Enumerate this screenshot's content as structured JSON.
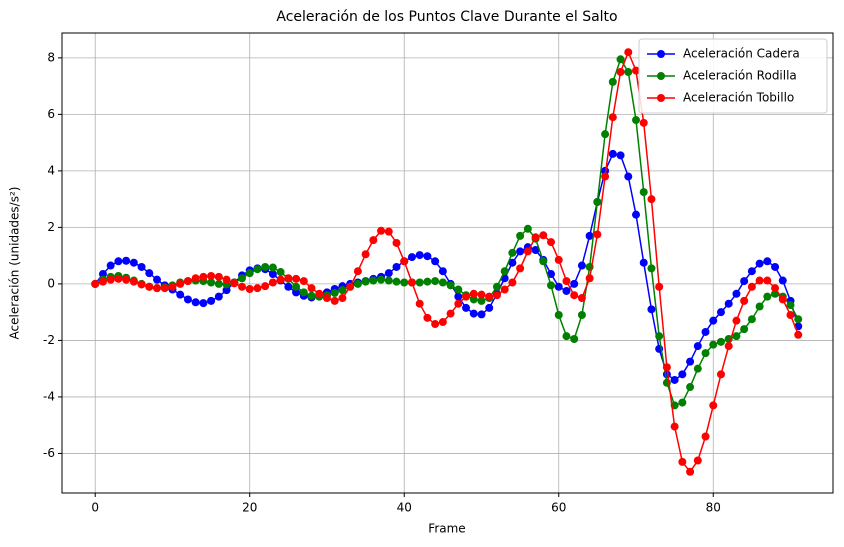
{
  "chart_data": {
    "type": "line",
    "title": "Aceleración de los Puntos Clave Durante el Salto",
    "x_label": "Frame",
    "y_label": "Aceleración (unidades/s²)",
    "x": [
      0,
      1,
      2,
      3,
      4,
      5,
      6,
      7,
      8,
      9,
      10,
      11,
      12,
      13,
      14,
      15,
      16,
      17,
      18,
      19,
      20,
      21,
      22,
      23,
      24,
      25,
      26,
      27,
      28,
      29,
      30,
      31,
      32,
      33,
      34,
      35,
      36,
      37,
      38,
      39,
      40,
      41,
      42,
      43,
      44,
      45,
      46,
      47,
      48,
      49,
      50,
      51,
      52,
      53,
      54,
      55,
      56,
      57,
      58,
      59,
      60,
      61,
      62,
      63,
      64,
      65,
      66,
      67,
      68,
      69,
      70,
      71,
      72,
      73,
      74,
      75,
      76,
      77,
      78,
      79,
      80,
      81,
      82,
      83,
      84,
      85,
      86,
      87,
      88,
      89,
      90,
      91
    ],
    "series": [
      {
        "name": "Aceleración Cadera",
        "color": "#0000ff",
        "values": [
          0,
          0.35,
          0.65,
          0.8,
          0.82,
          0.75,
          0.6,
          0.38,
          0.15,
          -0.05,
          -0.2,
          -0.38,
          -0.55,
          -0.65,
          -0.68,
          -0.6,
          -0.45,
          -0.22,
          0.05,
          0.3,
          0.48,
          0.55,
          0.52,
          0.35,
          0.12,
          -0.1,
          -0.3,
          -0.42,
          -0.48,
          -0.42,
          -0.3,
          -0.18,
          -0.08,
          0,
          0.05,
          0.1,
          0.18,
          0.25,
          0.38,
          0.6,
          0.8,
          0.95,
          1.02,
          0.98,
          0.8,
          0.45,
          0,
          -0.45,
          -0.85,
          -1.05,
          -1.08,
          -0.85,
          -0.35,
          0.2,
          0.75,
          1.15,
          1.3,
          1.2,
          0.85,
          0.35,
          -0.1,
          -0.25,
          0,
          0.65,
          1.7,
          2.9,
          4.0,
          4.6,
          4.55,
          3.8,
          2.45,
          0.75,
          -0.9,
          -2.3,
          -3.2,
          -3.4,
          -3.2,
          -2.75,
          -2.2,
          -1.7,
          -1.3,
          -1.0,
          -0.7,
          -0.35,
          0.1,
          0.45,
          0.72,
          0.8,
          0.6,
          0.12,
          -0.6,
          -1.5
        ]
      },
      {
        "name": "Aceleración Rodilla",
        "color": "#008000",
        "values": [
          0,
          0.15,
          0.25,
          0.28,
          0.22,
          0.12,
          0,
          -0.1,
          -0.15,
          -0.12,
          -0.05,
          0.05,
          0.1,
          0.12,
          0.1,
          0.05,
          0,
          -0.02,
          0.05,
          0.2,
          0.38,
          0.52,
          0.6,
          0.58,
          0.42,
          0.18,
          -0.1,
          -0.3,
          -0.42,
          -0.45,
          -0.4,
          -0.32,
          -0.22,
          -0.1,
          0,
          0.08,
          0.12,
          0.15,
          0.12,
          0.08,
          0.05,
          0.05,
          0.05,
          0.08,
          0.1,
          0.05,
          -0.05,
          -0.2,
          -0.4,
          -0.55,
          -0.6,
          -0.5,
          -0.1,
          0.45,
          1.1,
          1.7,
          1.95,
          1.6,
          0.8,
          -0.05,
          -1.1,
          -1.85,
          -1.95,
          -1.1,
          0.6,
          2.9,
          5.3,
          7.15,
          7.95,
          7.5,
          5.8,
          3.25,
          0.55,
          -1.85,
          -3.5,
          -4.3,
          -4.2,
          -3.65,
          -3.0,
          -2.45,
          -2.15,
          -2.05,
          -1.95,
          -1.85,
          -1.6,
          -1.25,
          -0.8,
          -0.45,
          -0.35,
          -0.45,
          -0.75,
          -1.25
        ]
      },
      {
        "name": "Aceleración Tobillo",
        "color": "#ff0000",
        "values": [
          0,
          0.08,
          0.15,
          0.18,
          0.15,
          0.08,
          -0.02,
          -0.1,
          -0.15,
          -0.15,
          -0.1,
          0,
          0.1,
          0.2,
          0.25,
          0.28,
          0.25,
          0.15,
          0.02,
          -0.1,
          -0.18,
          -0.15,
          -0.08,
          0.05,
          0.15,
          0.2,
          0.18,
          0.1,
          -0.15,
          -0.35,
          -0.5,
          -0.6,
          -0.5,
          -0.1,
          0.45,
          1.05,
          1.55,
          1.88,
          1.85,
          1.45,
          0.8,
          0.05,
          -0.7,
          -1.2,
          -1.42,
          -1.35,
          -1.05,
          -0.7,
          -0.45,
          -0.35,
          -0.38,
          -0.45,
          -0.4,
          -0.2,
          0.05,
          0.55,
          1.15,
          1.65,
          1.72,
          1.48,
          0.85,
          0.1,
          -0.4,
          -0.5,
          0.2,
          1.75,
          3.8,
          5.9,
          7.5,
          8.2,
          7.55,
          5.7,
          3.0,
          -0.1,
          -2.95,
          -5.05,
          -6.3,
          -6.65,
          -6.25,
          -5.4,
          -4.3,
          -3.2,
          -2.2,
          -1.3,
          -0.6,
          -0.1,
          0.12,
          0.12,
          -0.15,
          -0.55,
          -1.1,
          -1.8
        ]
      }
    ],
    "xlim": [
      -4.3,
      95.5
    ],
    "xticks": [
      0,
      20,
      40,
      60,
      80
    ],
    "ylim": [
      -7.4,
      8.88
    ],
    "yticks": [
      -6,
      -4,
      -2,
      0,
      2,
      4,
      6,
      8
    ],
    "grid": true,
    "legend": "upper right"
  }
}
